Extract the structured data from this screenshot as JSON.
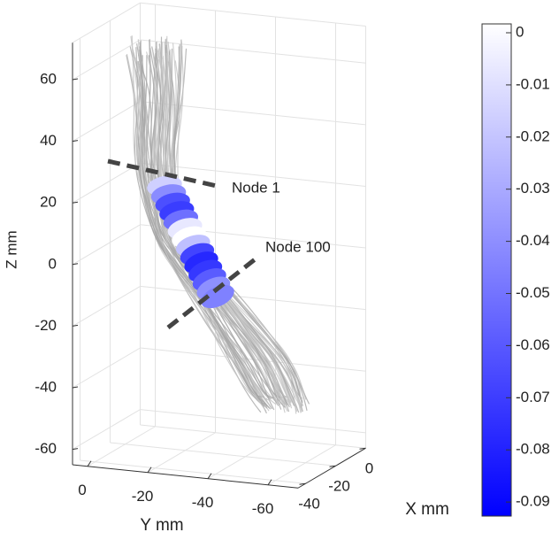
{
  "chart_data": {
    "type": "tract3d",
    "xlabel": "X mm",
    "ylabel": "Y mm",
    "zlabel": "Z mm",
    "xlim": [
      -45,
      0
    ],
    "xticks": [
      0,
      -20,
      -40
    ],
    "ylim": [
      -70,
      5
    ],
    "yticks": [
      0,
      -20,
      -40,
      -60
    ],
    "zlim": [
      -65,
      72
    ],
    "zticks": [
      60,
      40,
      20,
      0,
      -20,
      -40,
      -60
    ],
    "grid": true,
    "annotations": [
      "Node 1",
      "Node 100"
    ],
    "colorbar": {
      "clim": [
        -0.0927,
        0.0017
      ],
      "ticks": [
        0,
        -0.01,
        -0.02,
        -0.03,
        -0.04,
        -0.05,
        -0.06,
        -0.07,
        -0.08,
        -0.09
      ],
      "colors": [
        "#0000ff",
        "#ffffff"
      ]
    }
  }
}
